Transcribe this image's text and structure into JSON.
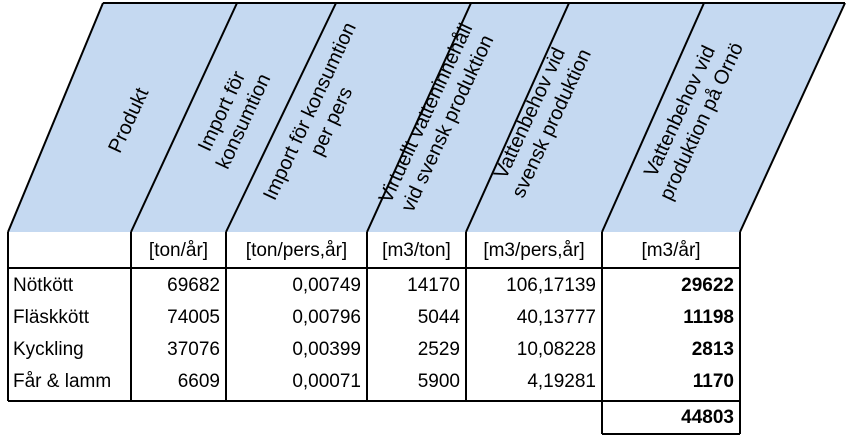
{
  "table": {
    "headers": [
      "Produkt",
      "Import för konsumtion",
      "Import för konsumtion per pers",
      "Virtuellt vatteninnehåll vid svensk produktion",
      "Vattenbehov vid svensk produktion",
      "Vattenbehov vid produktion på Ornö"
    ],
    "header_lines": [
      [
        "Produkt"
      ],
      [
        "Import för",
        "konsumtion"
      ],
      [
        "Import för konsumtion",
        "per pers"
      ],
      [
        "Virtuellt vatteninnehåll",
        "vid svensk produktion"
      ],
      [
        "Vattenbehov vid",
        "svensk produktion"
      ],
      [
        "Vattenbehov vid",
        "produktion på Ornö"
      ]
    ],
    "units": [
      "",
      "[ton/år]",
      "[ton/pers,år]",
      "[m3/ton]",
      "[m3/pers,år]",
      "[m3/år]"
    ],
    "rows": [
      [
        "Nötkött",
        "69682",
        "0,00749",
        "14170",
        "106,17139",
        "29622"
      ],
      [
        "Fläskkött",
        "74005",
        "0,00796",
        "5044",
        "40,13777",
        "11198"
      ],
      [
        "Kyckling",
        "37076",
        "0,00399",
        "2529",
        "10,08228",
        "2813"
      ],
      [
        "Får & lamm",
        "6609",
        "0,00071",
        "5900",
        "4,19281",
        "1170"
      ]
    ],
    "total": "44803",
    "header_fill": "#c5d9f1",
    "border_color": "#000000"
  }
}
